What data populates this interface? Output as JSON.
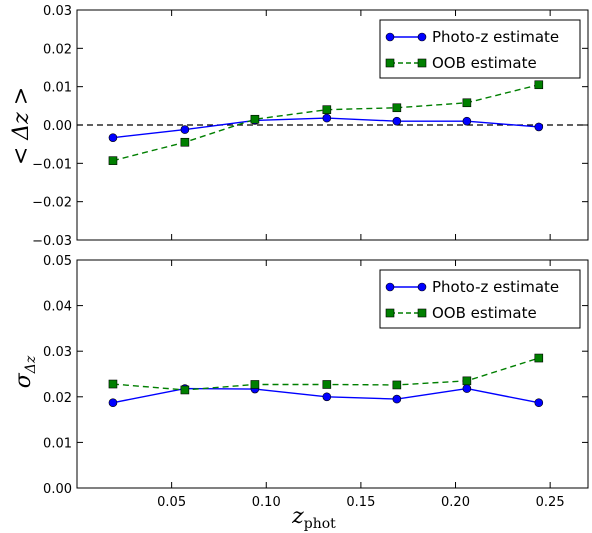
{
  "chart_data": [
    {
      "type": "line",
      "ylabel": "< Δz >",
      "ylim": [
        -0.03,
        0.03
      ],
      "xlim": [
        0,
        0.27
      ],
      "yticks": [
        -0.03,
        -0.02,
        -0.01,
        0.0,
        0.01,
        0.02,
        0.03
      ],
      "ytick_labels": [
        "−0.03",
        "−0.02",
        "−0.01",
        "0.00",
        "0.01",
        "0.02",
        "0.03"
      ],
      "reference_line": 0.0,
      "legend_position": "top-right",
      "x": [
        0.019,
        0.057,
        0.094,
        0.132,
        0.169,
        0.206,
        0.244
      ],
      "series": [
        {
          "name": "Photo-z estimate",
          "style": "solid-circle",
          "color": "#0000ff",
          "values": [
            -0.0033,
            -0.0012,
            0.0012,
            0.0018,
            0.001,
            0.001,
            -0.0005
          ]
        },
        {
          "name": "OOB estimate",
          "style": "dashed-square",
          "color": "#007f00",
          "values": [
            -0.0093,
            -0.0045,
            0.0015,
            0.004,
            0.0045,
            0.0058,
            0.0105
          ]
        }
      ]
    },
    {
      "type": "line",
      "xlabel": "z_phot",
      "ylabel": "σ_Δz",
      "ylim": [
        0.0,
        0.05
      ],
      "xlim": [
        0,
        0.27
      ],
      "yticks": [
        0.0,
        0.01,
        0.02,
        0.03,
        0.04,
        0.05
      ],
      "ytick_labels": [
        "0.00",
        "0.01",
        "0.02",
        "0.03",
        "0.04",
        "0.05"
      ],
      "xticks": [
        0.05,
        0.1,
        0.15,
        0.2,
        0.25
      ],
      "xtick_labels": [
        "0.05",
        "0.10",
        "0.15",
        "0.20",
        "0.25"
      ],
      "legend_position": "top-right",
      "x": [
        0.019,
        0.057,
        0.094,
        0.132,
        0.169,
        0.206,
        0.244
      ],
      "series": [
        {
          "name": "Photo-z estimate",
          "style": "solid-circle",
          "color": "#0000ff",
          "values": [
            0.0187,
            0.0218,
            0.0217,
            0.02,
            0.0195,
            0.0218,
            0.0187
          ]
        },
        {
          "name": "OOB estimate",
          "style": "dashed-square",
          "color": "#007f00",
          "values": [
            0.0228,
            0.0215,
            0.0227,
            0.0227,
            0.0226,
            0.0235,
            0.0285
          ]
        }
      ]
    }
  ]
}
